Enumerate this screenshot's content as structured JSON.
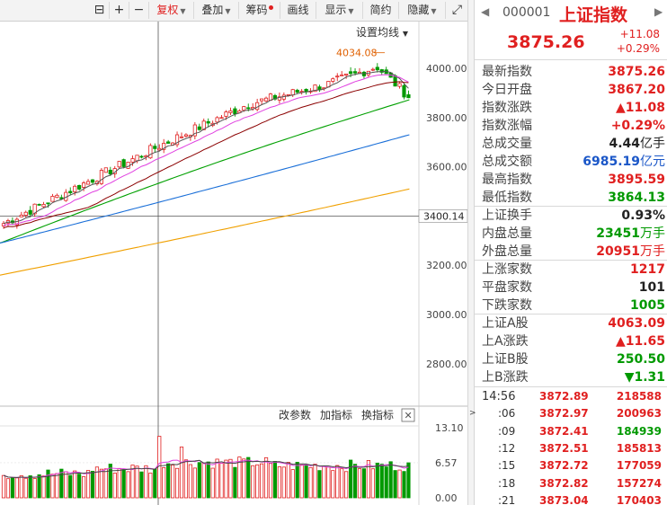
{
  "toolbar": {
    "items": [
      {
        "label": "",
        "icon": "lock-icon"
      },
      {
        "label": "+",
        "icon": "zoom-in-icon"
      },
      {
        "label": "−",
        "icon": "zoom-out-icon"
      },
      {
        "label": "复权",
        "caret": true,
        "active": true
      },
      {
        "label": "叠加",
        "caret": true
      },
      {
        "label": "筹码",
        "dot": true
      },
      {
        "label": "画线"
      },
      {
        "label": "显示",
        "caret": true
      },
      {
        "label": "简约"
      },
      {
        "label": "隐藏",
        "caret": true
      },
      {
        "label": "",
        "icon": "fullscreen-icon"
      }
    ]
  },
  "chart": {
    "settings_label": "设置均线",
    "high_label": "4034.08",
    "cursor_value": "3400.14",
    "y_axis": [
      "4000.00",
      "3800.00",
      "3600.00",
      "3200.00",
      "3000.00",
      "2800.00"
    ],
    "volume_axis": [
      "13.10",
      "6.57",
      "0.00"
    ],
    "sub_buttons": [
      "改参数",
      "加指标",
      "换指标"
    ],
    "close_symbol": "✕"
  },
  "colors": {
    "up": "#e02020",
    "down": "#009900",
    "ma5": "#555555",
    "ma10": "#e040e0",
    "ma20": "#8b0000",
    "ma30": "#00a000",
    "ma60": "#1a6fd8",
    "ma120": "#f0a000"
  },
  "quote": {
    "code": "000001",
    "name": "上证指数",
    "price": "3875.26",
    "change": "+11.08",
    "change_pct": "+0.29%",
    "stats": [
      {
        "label": "最新指数",
        "value": "3875.26",
        "color": "red"
      },
      {
        "label": "今日开盘",
        "value": "3867.20",
        "color": "red"
      },
      {
        "label": "指数涨跌",
        "value": "▲11.08",
        "color": "red"
      },
      {
        "label": "指数涨幅",
        "value": "+0.29%",
        "color": "red"
      },
      {
        "label": "总成交量",
        "value": "4.44",
        "unit": "亿手",
        "color": "black"
      },
      {
        "label": "总成交额",
        "value": "6985.19",
        "unit": "亿元",
        "color": "blue"
      },
      {
        "label": "最高指数",
        "value": "3895.59",
        "color": "red"
      },
      {
        "label": "最低指数",
        "value": "3864.13",
        "color": "green"
      }
    ],
    "stats2": [
      {
        "label": "上证换手",
        "value": "0.93%",
        "color": "black"
      },
      {
        "label": "内盘总量",
        "value": "23451",
        "unit": "万手",
        "color": "green"
      },
      {
        "label": "外盘总量",
        "value": "20951",
        "unit": "万手",
        "color": "red"
      }
    ],
    "stats3": [
      {
        "label": "上涨家数",
        "value": "1217",
        "color": "red"
      },
      {
        "label": "平盘家数",
        "value": "101",
        "color": "black"
      },
      {
        "label": "下跌家数",
        "value": "1005",
        "color": "green"
      }
    ],
    "stats4": [
      {
        "label": "上证A股",
        "value": "4063.09",
        "color": "red"
      },
      {
        "label": "上A涨跌",
        "value": "▲11.65",
        "color": "red"
      },
      {
        "label": "上证B股",
        "value": "250.50",
        "color": "green"
      },
      {
        "label": "上B涨跌",
        "value": "▼1.31",
        "color": "green"
      }
    ],
    "ticks": [
      {
        "time": "14:56",
        "price": "3872.89",
        "volume": "218588",
        "vol_color": "red"
      },
      {
        "time": ":06",
        "price": "3872.97",
        "volume": "200963",
        "vol_color": "red"
      },
      {
        "time": ":09",
        "price": "3872.41",
        "volume": "184939",
        "vol_color": "green"
      },
      {
        "time": ":12",
        "price": "3872.51",
        "volume": "185813",
        "vol_color": "red"
      },
      {
        "time": ":15",
        "price": "3872.72",
        "volume": "177059",
        "vol_color": "red"
      },
      {
        "time": ":18",
        "price": "3872.82",
        "volume": "157274",
        "vol_color": "red"
      },
      {
        "time": ":21",
        "price": "3873.04",
        "volume": "170403",
        "vol_color": "red"
      }
    ]
  }
}
